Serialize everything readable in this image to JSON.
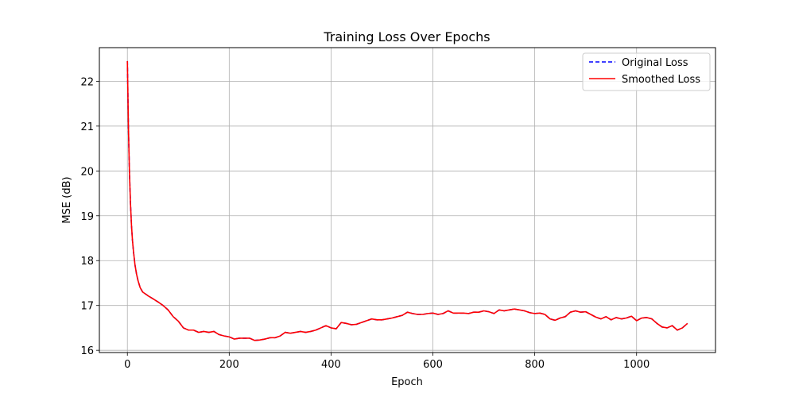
{
  "chart_data": {
    "type": "line",
    "title": "Training Loss Over Epochs",
    "xlabel": "Epoch",
    "ylabel": "MSE (dB)",
    "xlim": [
      -55,
      1155
    ],
    "ylim": [
      15.95,
      22.75
    ],
    "xticks": [
      0,
      200,
      400,
      600,
      800,
      1000
    ],
    "yticks": [
      16,
      17,
      18,
      19,
      20,
      21,
      22
    ],
    "grid": true,
    "legend_position": "top-right",
    "series": [
      {
        "name": "Original Loss",
        "color": "#0000ff",
        "style": "dashed",
        "x": [
          0,
          2,
          4,
          6,
          8,
          10,
          12,
          15,
          18,
          21,
          25,
          30,
          35,
          40,
          50,
          60,
          70,
          80,
          90,
          100,
          110,
          120,
          130,
          140,
          150,
          160,
          170,
          180,
          190,
          200,
          210,
          220,
          230,
          240,
          250,
          260,
          270,
          280,
          290,
          300,
          310,
          320,
          330,
          340,
          350,
          360,
          370,
          380,
          390,
          400,
          410,
          420,
          430,
          440,
          450,
          460,
          470,
          480,
          490,
          500,
          510,
          520,
          530,
          540,
          550,
          560,
          570,
          580,
          590,
          600,
          610,
          620,
          630,
          640,
          650,
          660,
          670,
          680,
          690,
          700,
          710,
          720,
          730,
          740,
          750,
          760,
          770,
          780,
          790,
          800,
          810,
          820,
          830,
          840,
          850,
          860,
          870,
          880,
          890,
          900,
          910,
          920,
          930,
          940,
          950,
          960,
          970,
          980,
          990,
          1000,
          1010,
          1020,
          1030,
          1040,
          1050,
          1060,
          1070,
          1080,
          1090,
          1100
        ],
        "y": [
          22.45,
          21.0,
          20.0,
          19.3,
          18.8,
          18.45,
          18.2,
          17.9,
          17.7,
          17.55,
          17.4,
          17.3,
          17.26,
          17.22,
          17.15,
          17.08,
          17.0,
          16.9,
          16.75,
          16.65,
          16.5,
          16.45,
          16.45,
          16.4,
          16.42,
          16.4,
          16.42,
          16.35,
          16.32,
          16.3,
          16.25,
          16.27,
          16.27,
          16.27,
          16.22,
          16.23,
          16.25,
          16.28,
          16.28,
          16.32,
          16.4,
          16.38,
          16.4,
          16.42,
          16.4,
          16.42,
          16.45,
          16.5,
          16.55,
          16.5,
          16.48,
          16.62,
          16.6,
          16.57,
          16.58,
          16.62,
          16.66,
          16.7,
          16.68,
          16.68,
          16.7,
          16.72,
          16.75,
          16.78,
          16.85,
          16.82,
          16.8,
          16.8,
          16.82,
          16.83,
          16.8,
          16.82,
          16.88,
          16.83,
          16.83,
          16.83,
          16.82,
          16.85,
          16.85,
          16.88,
          16.86,
          16.82,
          16.9,
          16.88,
          16.9,
          16.92,
          16.9,
          16.88,
          16.84,
          16.82,
          16.83,
          16.8,
          16.7,
          16.67,
          16.72,
          16.75,
          16.85,
          16.88,
          16.85,
          16.86,
          16.8,
          16.74,
          16.7,
          16.75,
          16.68,
          16.73,
          16.7,
          16.72,
          16.76,
          16.66,
          16.72,
          16.73,
          16.7,
          16.6,
          16.52,
          16.5,
          16.55,
          16.45,
          16.5,
          16.6
        ]
      },
      {
        "name": "Smoothed Loss",
        "color": "#ff0000",
        "style": "solid",
        "x": [
          0,
          2,
          4,
          6,
          8,
          10,
          12,
          15,
          18,
          21,
          25,
          30,
          35,
          40,
          50,
          60,
          70,
          80,
          90,
          100,
          110,
          120,
          130,
          140,
          150,
          160,
          170,
          180,
          190,
          200,
          210,
          220,
          230,
          240,
          250,
          260,
          270,
          280,
          290,
          300,
          310,
          320,
          330,
          340,
          350,
          360,
          370,
          380,
          390,
          400,
          410,
          420,
          430,
          440,
          450,
          460,
          470,
          480,
          490,
          500,
          510,
          520,
          530,
          540,
          550,
          560,
          570,
          580,
          590,
          600,
          610,
          620,
          630,
          640,
          650,
          660,
          670,
          680,
          690,
          700,
          710,
          720,
          730,
          740,
          750,
          760,
          770,
          780,
          790,
          800,
          810,
          820,
          830,
          840,
          850,
          860,
          870,
          880,
          890,
          900,
          910,
          920,
          930,
          940,
          950,
          960,
          970,
          980,
          990,
          1000,
          1010,
          1020,
          1030,
          1040,
          1050,
          1060,
          1070,
          1080,
          1090,
          1100
        ],
        "y": [
          22.45,
          21.0,
          20.0,
          19.3,
          18.8,
          18.45,
          18.2,
          17.9,
          17.7,
          17.55,
          17.4,
          17.3,
          17.26,
          17.22,
          17.15,
          17.08,
          17.0,
          16.9,
          16.75,
          16.65,
          16.5,
          16.45,
          16.45,
          16.4,
          16.42,
          16.4,
          16.42,
          16.35,
          16.32,
          16.3,
          16.25,
          16.27,
          16.27,
          16.27,
          16.22,
          16.23,
          16.25,
          16.28,
          16.28,
          16.32,
          16.4,
          16.38,
          16.4,
          16.42,
          16.4,
          16.42,
          16.45,
          16.5,
          16.55,
          16.5,
          16.48,
          16.62,
          16.6,
          16.57,
          16.58,
          16.62,
          16.66,
          16.7,
          16.68,
          16.68,
          16.7,
          16.72,
          16.75,
          16.78,
          16.85,
          16.82,
          16.8,
          16.8,
          16.82,
          16.83,
          16.8,
          16.82,
          16.88,
          16.83,
          16.83,
          16.83,
          16.82,
          16.85,
          16.85,
          16.88,
          16.86,
          16.82,
          16.9,
          16.88,
          16.9,
          16.92,
          16.9,
          16.88,
          16.84,
          16.82,
          16.83,
          16.8,
          16.7,
          16.67,
          16.72,
          16.75,
          16.85,
          16.88,
          16.85,
          16.86,
          16.8,
          16.74,
          16.7,
          16.75,
          16.68,
          16.73,
          16.7,
          16.72,
          16.76,
          16.66,
          16.72,
          16.73,
          16.7,
          16.6,
          16.52,
          16.5,
          16.55,
          16.45,
          16.5,
          16.6
        ]
      }
    ]
  }
}
